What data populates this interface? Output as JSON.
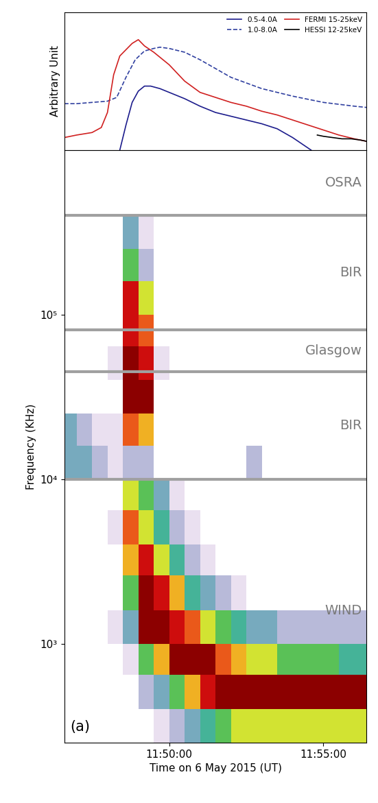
{
  "chart_data": [
    {
      "type": "line",
      "ylabel": "Arbitrary Unit",
      "xlim": [
        46.6,
        56.4
      ],
      "ylim": [
        0,
        1.1
      ],
      "tick_labels": false,
      "legend": "upper right",
      "series": [
        {
          "name": "0.5-4.0A",
          "color": "#1c1c8c",
          "line_style": "solid",
          "x": [
            48.4,
            48.6,
            48.8,
            49.0,
            49.2,
            49.4,
            49.7,
            50.0,
            50.5,
            51.0,
            51.5,
            52.0,
            52.5,
            53.0,
            53.5,
            54.0,
            54.6
          ],
          "values": [
            0.0,
            0.2,
            0.38,
            0.47,
            0.51,
            0.51,
            0.49,
            0.46,
            0.41,
            0.35,
            0.3,
            0.27,
            0.24,
            0.21,
            0.17,
            0.1,
            0.0
          ]
        },
        {
          "name": "1.0-8.0A",
          "color": "#3040a0",
          "line_style": "dashed",
          "x": [
            46.6,
            47.0,
            47.5,
            48.0,
            48.3,
            48.6,
            48.9,
            49.2,
            49.5,
            49.7,
            50.0,
            50.5,
            51.0,
            51.5,
            52.0,
            53.0,
            54.0,
            55.0,
            56.0,
            56.4
          ],
          "values": [
            0.37,
            0.37,
            0.38,
            0.39,
            0.42,
            0.58,
            0.72,
            0.79,
            0.81,
            0.82,
            0.81,
            0.78,
            0.72,
            0.65,
            0.58,
            0.49,
            0.43,
            0.38,
            0.35,
            0.34
          ]
        },
        {
          "name": "FERMI 15-25keV",
          "color": "#d02020",
          "line_style": "solid",
          "x": [
            46.6,
            47.0,
            47.5,
            47.8,
            48.0,
            48.2,
            48.4,
            48.6,
            48.8,
            49.0,
            49.2,
            49.5,
            50.0,
            50.5,
            51.0,
            51.5,
            52.0,
            52.5,
            53.0,
            53.5,
            54.0,
            54.5,
            55.0,
            55.5,
            56.0,
            56.4
          ],
          "values": [
            0.1,
            0.12,
            0.14,
            0.18,
            0.3,
            0.6,
            0.75,
            0.8,
            0.85,
            0.88,
            0.83,
            0.78,
            0.68,
            0.55,
            0.46,
            0.42,
            0.38,
            0.35,
            0.31,
            0.28,
            0.24,
            0.2,
            0.16,
            0.12,
            0.09,
            0.07
          ]
        },
        {
          "name": "HESSI 12-25keV",
          "color": "#000000",
          "line_style": "solid",
          "x": [
            54.8,
            55.0,
            55.3,
            55.6,
            55.9,
            56.2,
            56.4
          ],
          "values": [
            0.12,
            0.11,
            0.1,
            0.09,
            0.09,
            0.08,
            0.07
          ]
        }
      ]
    },
    {
      "type": "heatmap",
      "xlabel": "Time on 6 May 2015 (UT)",
      "ylabel": "Frequency (KHz)",
      "log": "y",
      "xlim": [
        46.6,
        56.4
      ],
      "ylim": [
        250,
        1000000
      ],
      "xticks": [
        {
          "value": 50,
          "label": "11:50:00"
        },
        {
          "value": 55,
          "label": "11:55:00"
        }
      ],
      "yticks": [
        {
          "value": 1000,
          "label": "10³"
        },
        {
          "value": 10000,
          "label": "10⁴"
        },
        {
          "value": 100000,
          "label": "10⁵"
        }
      ],
      "annotation": "(a)",
      "band_edges": [
        10000,
        45000,
        81000,
        400000
      ],
      "band_labels": [
        "WIND",
        "BIR",
        "Glasgow",
        "BIR",
        "OSRA"
      ],
      "time_edges": [
        46.5,
        47.0,
        47.5,
        48.0,
        48.5,
        49.0,
        49.5,
        50.0,
        50.5,
        51.0,
        51.5,
        52.0,
        52.5,
        53.0,
        53.5,
        54.0,
        54.5,
        55.0,
        55.5,
        56.0,
        56.5
      ],
      "frequency_edges": [
        250,
        400,
        650,
        1000,
        1600,
        2600,
        4000,
        6500,
        10000,
        16000,
        25000,
        40000,
        64000,
        100000,
        160000,
        250000,
        400000,
        1000000
      ],
      "cells": [
        [
          0,
          0,
          0,
          0,
          0,
          0,
          1,
          2,
          3,
          4,
          5,
          6,
          6,
          6,
          6,
          6,
          6,
          6,
          6,
          6
        ],
        [
          0,
          0,
          0,
          0,
          0,
          2,
          3,
          5,
          7,
          9,
          10,
          10,
          10,
          10,
          10,
          10,
          10,
          10,
          10,
          10
        ],
        [
          0,
          0,
          0,
          0,
          1,
          5,
          7,
          10,
          10,
          10,
          8,
          7,
          6,
          6,
          5,
          5,
          5,
          5,
          4,
          4
        ],
        [
          0,
          0,
          0,
          1,
          3,
          10,
          10,
          9,
          8,
          6,
          5,
          4,
          3,
          3,
          2,
          2,
          2,
          2,
          2,
          2
        ],
        [
          0,
          0,
          0,
          0,
          5,
          10,
          9,
          7,
          4,
          3,
          2,
          1,
          0,
          0,
          0,
          0,
          0,
          0,
          0,
          0
        ],
        [
          0,
          0,
          0,
          0,
          7,
          9,
          6,
          4,
          2,
          1,
          0,
          0,
          0,
          0,
          0,
          0,
          0,
          0,
          0,
          0
        ],
        [
          0,
          0,
          0,
          1,
          8,
          6,
          4,
          2,
          1,
          0,
          0,
          0,
          0,
          0,
          0,
          0,
          0,
          0,
          0,
          0
        ],
        [
          0,
          0,
          0,
          0,
          6,
          5,
          3,
          1,
          0,
          0,
          0,
          0,
          0,
          0,
          0,
          0,
          0,
          0,
          0,
          0
        ],
        [
          3,
          3,
          2,
          1,
          2,
          2,
          0,
          0,
          0,
          0,
          0,
          0,
          2,
          0,
          0,
          0,
          0,
          0,
          0,
          0
        ],
        [
          3,
          2,
          1,
          1,
          8,
          7,
          0,
          0,
          0,
          0,
          0,
          0,
          0,
          0,
          0,
          0,
          0,
          0,
          0,
          0
        ],
        [
          0,
          0,
          0,
          0,
          10,
          10,
          0,
          0,
          0,
          0,
          0,
          0,
          0,
          0,
          0,
          0,
          0,
          0,
          0,
          0
        ],
        [
          0,
          0,
          0,
          1,
          10,
          9,
          1,
          0,
          0,
          0,
          0,
          0,
          0,
          0,
          0,
          0,
          0,
          0,
          0,
          0
        ],
        [
          0,
          0,
          0,
          0,
          9,
          8,
          0,
          0,
          0,
          0,
          0,
          0,
          0,
          0,
          0,
          0,
          0,
          0,
          0,
          0
        ],
        [
          0,
          0,
          0,
          0,
          9,
          6,
          0,
          0,
          0,
          0,
          0,
          0,
          0,
          0,
          0,
          0,
          0,
          0,
          0,
          0
        ],
        [
          0,
          0,
          0,
          0,
          5,
          2,
          0,
          0,
          0,
          0,
          0,
          0,
          0,
          0,
          0,
          0,
          0,
          0,
          0,
          0
        ],
        [
          0,
          0,
          0,
          0,
          3,
          1,
          0,
          0,
          0,
          0,
          0,
          0,
          0,
          0,
          0,
          0,
          0,
          0,
          0,
          0
        ],
        [
          0,
          0,
          0,
          0,
          0,
          0,
          0,
          0,
          0,
          0,
          0,
          0,
          0,
          0,
          0,
          0,
          0,
          0,
          0,
          0
        ]
      ]
    }
  ]
}
